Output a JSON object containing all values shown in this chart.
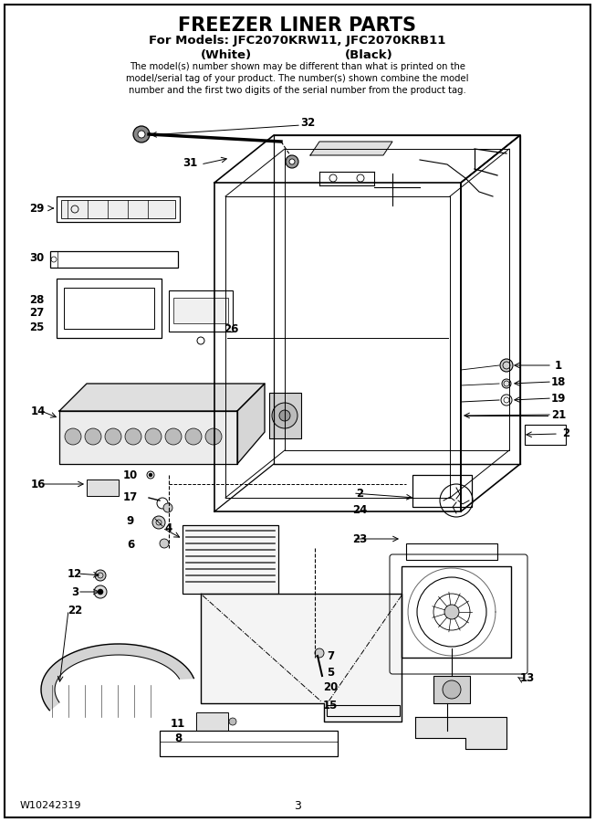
{
  "title": "FREEZER LINER PARTS",
  "subtitle1": "For Models: JFC2070KRW11, JFC2070KRB11",
  "subtitle2_left": "(White)",
  "subtitle2_right": "(Black)",
  "description": "The model(s) number shown may be different than what is printed on the\nmodel/serial tag of your product. The number(s) shown combine the model\nnumber and the first two digits of the serial number from the product tag.",
  "footer_left": "W10242319",
  "footer_center": "3",
  "background_color": "#ffffff",
  "border_color": "#000000",
  "fig_width": 6.52,
  "fig_height": 9.0,
  "dpi": 100
}
